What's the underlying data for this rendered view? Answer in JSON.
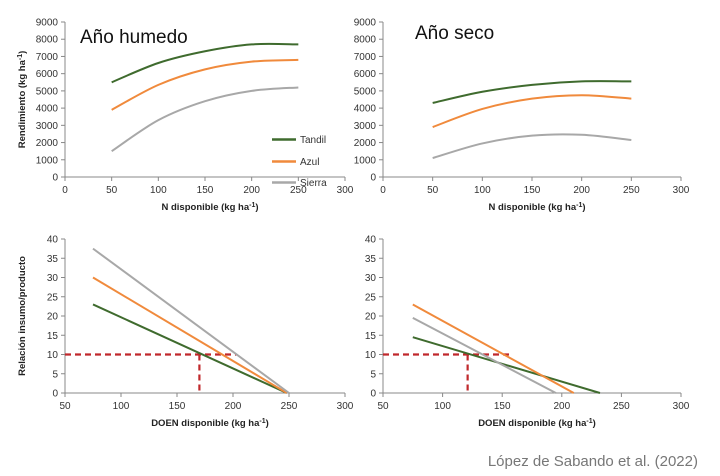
{
  "colors": {
    "Tandil": "#3f6b2e",
    "Azul": "#f08a3c",
    "Sierra": "#a8a8a8",
    "threshold": "#c0282c",
    "axis": "#888888"
  },
  "legend": {
    "items": [
      "Tandil",
      "Azul",
      "Sierra"
    ],
    "placement": "right of top-left panel"
  },
  "credit": "López de Sabando et al. (2022)",
  "chart_data": [
    {
      "type": "line",
      "title": "Año humedo",
      "ylabel": "Rendimiento (kg ha-1)",
      "xlabel": "N disponible  (kg ha-1)",
      "xlim": [
        0,
        300
      ],
      "ylim": [
        0,
        9000
      ],
      "xticks": [
        0,
        50,
        100,
        150,
        200,
        250,
        300
      ],
      "yticks": [
        0,
        1000,
        2000,
        3000,
        4000,
        5000,
        6000,
        7000,
        8000,
        9000
      ],
      "series": [
        {
          "name": "Tandil",
          "x": [
            50,
            100,
            150,
            200,
            250
          ],
          "y": [
            5500,
            6620,
            7300,
            7700,
            7700
          ]
        },
        {
          "name": "Azul",
          "x": [
            50,
            100,
            150,
            200,
            250
          ],
          "y": [
            3900,
            5350,
            6250,
            6700,
            6800
          ]
        },
        {
          "name": "Sierra",
          "x": [
            50,
            100,
            150,
            200,
            250
          ],
          "y": [
            1500,
            3300,
            4400,
            5000,
            5200
          ]
        }
      ]
    },
    {
      "type": "line",
      "title": "Año seco",
      "ylabel": "",
      "xlabel": "N disponible  (kg ha-1)",
      "xlim": [
        0,
        300
      ],
      "ylim": [
        0,
        9000
      ],
      "xticks": [
        0,
        50,
        100,
        150,
        200,
        250,
        300
      ],
      "yticks": [
        0,
        1000,
        2000,
        3000,
        4000,
        5000,
        6000,
        7000,
        8000,
        9000
      ],
      "series": [
        {
          "name": "Tandil",
          "x": [
            50,
            100,
            150,
            200,
            250
          ],
          "y": [
            4300,
            4950,
            5350,
            5550,
            5550
          ]
        },
        {
          "name": "Azul",
          "x": [
            50,
            100,
            150,
            200,
            250
          ],
          "y": [
            2900,
            3950,
            4550,
            4750,
            4550
          ]
        },
        {
          "name": "Sierra",
          "x": [
            50,
            100,
            150,
            200,
            250
          ],
          "y": [
            1100,
            1950,
            2400,
            2450,
            2150
          ]
        }
      ]
    },
    {
      "type": "line",
      "title": "",
      "ylabel": "Relación insumo/producto",
      "xlabel": "DOEN disponible  (kg ha-1)",
      "xlim": [
        50,
        300
      ],
      "ylim": [
        0,
        40
      ],
      "xticks": [
        50,
        100,
        150,
        200,
        250,
        300
      ],
      "yticks": [
        0,
        5,
        10,
        15,
        20,
        25,
        30,
        35,
        40
      ],
      "series": [
        {
          "name": "Tandil",
          "x": [
            75,
            248
          ],
          "y": [
            23,
            0
          ]
        },
        {
          "name": "Azul",
          "x": [
            75,
            248
          ],
          "y": [
            30,
            0
          ]
        },
        {
          "name": "Sierra",
          "x": [
            75,
            250
          ],
          "y": [
            37.5,
            0
          ]
        }
      ],
      "threshold": {
        "y": 10,
        "x_from": 50,
        "x_to": 203,
        "x_drop": 170
      }
    },
    {
      "type": "line",
      "title": "",
      "ylabel": "",
      "xlabel": "DOEN disponible  (kg ha-1)",
      "xlim": [
        50,
        300
      ],
      "ylim": [
        0,
        40
      ],
      "xticks": [
        50,
        100,
        150,
        200,
        250,
        300
      ],
      "yticks": [
        0,
        5,
        10,
        15,
        20,
        25,
        30,
        35,
        40
      ],
      "series": [
        {
          "name": "Tandil",
          "x": [
            75,
            232
          ],
          "y": [
            14.5,
            0
          ]
        },
        {
          "name": "Azul",
          "x": [
            75,
            210
          ],
          "y": [
            23,
            0
          ]
        },
        {
          "name": "Sierra",
          "x": [
            75,
            195
          ],
          "y": [
            19.5,
            0
          ]
        }
      ],
      "threshold": {
        "y": 10,
        "x_from": 50,
        "x_to": 158,
        "x_drop": 121
      }
    }
  ]
}
